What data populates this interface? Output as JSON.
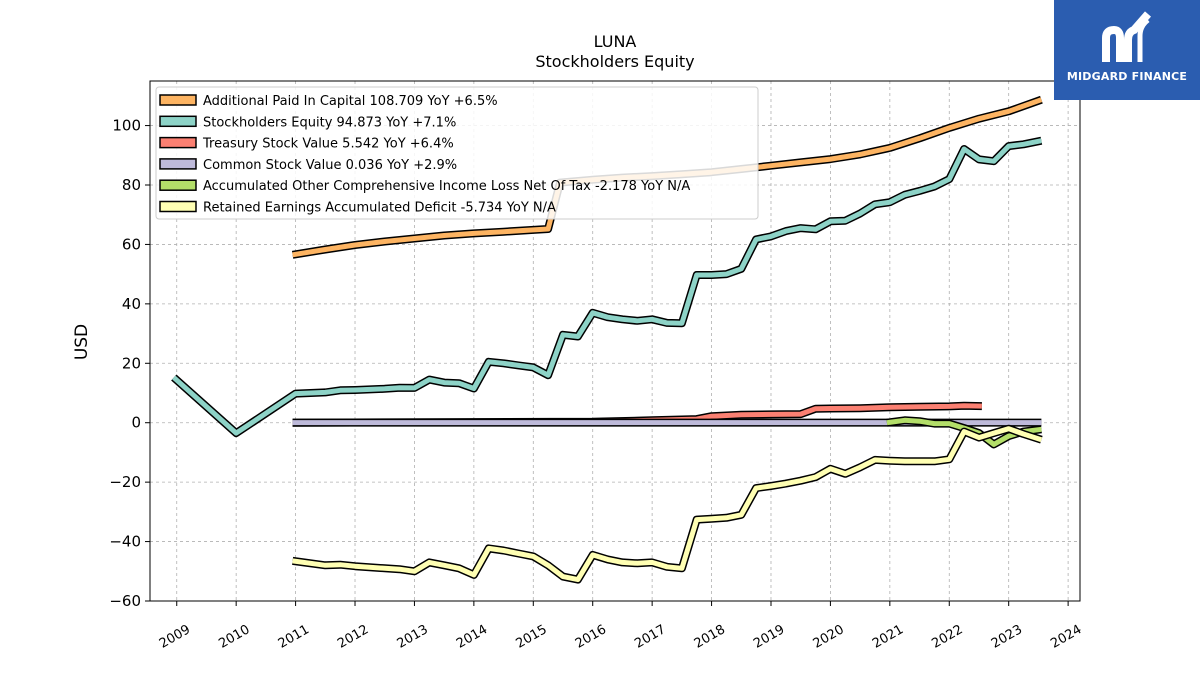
{
  "chart_data": {
    "type": "line",
    "title": "LUNA",
    "subtitle": "Stockholders  Equity",
    "ylabel": "USD",
    "xlabel": "",
    "ylim": [
      -60,
      115
    ],
    "xlim": [
      2008.55,
      2024.2
    ],
    "yticks": [
      -60,
      -40,
      -20,
      0,
      20,
      40,
      60,
      80,
      100
    ],
    "ytick_labels": [
      "−60",
      "−40",
      "−20",
      "0",
      "20",
      "40",
      "60",
      "80",
      "100"
    ],
    "xticks": [
      2009,
      2010,
      2011,
      2012,
      2013,
      2014,
      2015,
      2016,
      2017,
      2018,
      2019,
      2020,
      2021,
      2022,
      2023,
      2024
    ],
    "xtick_labels": [
      "2009",
      "2010",
      "2011",
      "2012",
      "2013",
      "2014",
      "2015",
      "2016",
      "2017",
      "2018",
      "2019",
      "2020",
      "2021",
      "2022",
      "2023",
      "2024"
    ],
    "grid": true,
    "legend_position": "top-left",
    "series": [
      {
        "name": "Additional Paid In Capital  108.709 YoY +6.5%",
        "color": "#fdb462",
        "x": [
          2010.95,
          2011.5,
          2012.0,
          2012.5,
          2013.0,
          2013.5,
          2014.0,
          2014.5,
          2015.0,
          2015.25,
          2015.45,
          2016.0,
          2016.5,
          2017.0,
          2017.5,
          2018.0,
          2018.5,
          2019.0,
          2019.5,
          2020.0,
          2020.5,
          2021.0,
          2021.5,
          2022.0,
          2022.5,
          2023.0,
          2023.55
        ],
        "y": [
          56.5,
          58.3,
          59.8,
          61.0,
          62.0,
          63.0,
          63.7,
          64.3,
          64.9,
          65.2,
          80.8,
          81.8,
          82.5,
          83.0,
          83.6,
          84.3,
          85.4,
          86.5,
          87.6,
          88.7,
          90.3,
          92.5,
          95.7,
          99.2,
          102.3,
          104.8,
          108.7
        ]
      },
      {
        "name": "Stockholders Equity  94.873 YoY +7.1%",
        "color": "#8dd3c7",
        "x": [
          2008.95,
          2010.0,
          2011.0,
          2011.5,
          2011.75,
          2012.0,
          2012.5,
          2012.75,
          2013.0,
          2013.25,
          2013.5,
          2013.75,
          2014.0,
          2014.25,
          2014.5,
          2014.75,
          2015.0,
          2015.25,
          2015.5,
          2015.75,
          2016.0,
          2016.25,
          2016.5,
          2016.75,
          2017.0,
          2017.25,
          2017.5,
          2017.75,
          2018.0,
          2018.25,
          2018.5,
          2018.75,
          2019.0,
          2019.25,
          2019.5,
          2019.75,
          2020.0,
          2020.25,
          2020.5,
          2020.75,
          2021.0,
          2021.25,
          2021.5,
          2021.75,
          2022.0,
          2022.25,
          2022.5,
          2022.75,
          2023.0,
          2023.25,
          2023.55
        ],
        "y": [
          15.2,
          -3.5,
          9.8,
          10.2,
          10.9,
          11.0,
          11.4,
          11.8,
          11.7,
          14.5,
          13.5,
          13.3,
          11.5,
          20.5,
          20.0,
          19.3,
          18.6,
          16.0,
          29.6,
          29.0,
          37.0,
          35.5,
          34.8,
          34.3,
          34.8,
          33.6,
          33.5,
          49.7,
          49.7,
          50.0,
          51.8,
          61.7,
          62.7,
          64.5,
          65.5,
          65.1,
          67.8,
          68.0,
          70.4,
          73.5,
          74.2,
          76.7,
          78.0,
          79.5,
          82.0,
          92.1,
          88.6,
          88.0,
          93.1,
          93.7,
          94.9
        ]
      },
      {
        "name": "Treasury Stock Value  5.542 YoY +6.4%",
        "color": "#fb8072",
        "x": [
          2010.95,
          2016.0,
          2017.0,
          2017.75,
          2018.0,
          2018.5,
          2019.0,
          2019.5,
          2019.75,
          2020.0,
          2020.5,
          2021.0,
          2021.5,
          2022.0,
          2022.25,
          2022.55
        ],
        "y": [
          0.0,
          0.3,
          0.8,
          1.2,
          2.2,
          2.7,
          2.8,
          2.9,
          4.7,
          4.8,
          4.9,
          5.2,
          5.4,
          5.5,
          5.7,
          5.6
        ]
      },
      {
        "name": "Common Stock Value  0.036 YoY +2.9%",
        "color": "#bebada",
        "x": [
          2010.95,
          2023.55
        ],
        "y": [
          0.036,
          0.036
        ]
      },
      {
        "name": "Accumulated Other Comprehensive Income Loss Net Of Tax  -2.178 YoY N/A",
        "color": "#b3de69",
        "x": [
          2020.95,
          2021.25,
          2021.5,
          2021.75,
          2022.0,
          2022.25,
          2022.5,
          2022.75,
          2023.0,
          2023.25,
          2023.55
        ],
        "y": [
          0.0,
          0.8,
          0.5,
          -0.3,
          -0.3,
          -1.8,
          -3.5,
          -7.3,
          -4.5,
          -3.0,
          -2.2
        ]
      },
      {
        "name": "Retained Earnings Accumulated Deficit  -5.734 YoY N/A",
        "color": "#ffffb3",
        "x": [
          2010.95,
          2011.5,
          2011.75,
          2012.0,
          2012.5,
          2012.75,
          2013.0,
          2013.25,
          2013.5,
          2013.75,
          2014.0,
          2014.25,
          2014.5,
          2014.75,
          2015.0,
          2015.25,
          2015.5,
          2015.75,
          2016.0,
          2016.25,
          2016.5,
          2016.75,
          2017.0,
          2017.25,
          2017.5,
          2017.75,
          2018.0,
          2018.25,
          2018.5,
          2018.75,
          2019.0,
          2019.25,
          2019.5,
          2019.75,
          2020.0,
          2020.25,
          2020.5,
          2020.75,
          2021.0,
          2021.25,
          2021.5,
          2021.75,
          2022.0,
          2022.25,
          2022.5,
          2022.75,
          2023.0,
          2023.25,
          2023.55
        ],
        "y": [
          -46.5,
          -48.0,
          -47.8,
          -48.3,
          -49.0,
          -49.3,
          -50.0,
          -47.0,
          -48.0,
          -49.0,
          -51.2,
          -42.3,
          -43.0,
          -44.0,
          -45.0,
          -48.0,
          -51.8,
          -52.8,
          -44.5,
          -46.0,
          -47.0,
          -47.3,
          -47.0,
          -48.5,
          -49.0,
          -32.6,
          -32.3,
          -32.0,
          -31.0,
          -22.0,
          -21.3,
          -20.5,
          -19.5,
          -18.3,
          -15.5,
          -17.2,
          -15.0,
          -12.5,
          -12.8,
          -13.0,
          -13.0,
          -13.0,
          -12.3,
          -3.0,
          -5.0,
          -3.5,
          -2.0,
          -3.8,
          -5.7
        ]
      }
    ]
  },
  "logo": {
    "text": "MIDGARD FINANCE",
    "icon": "midgard-m-logo-icon"
  }
}
